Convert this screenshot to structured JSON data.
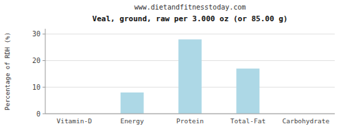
{
  "chart_data": {
    "type": "bar",
    "title": "Veal, ground, raw per 3.000 oz (or 85.00 g)",
    "subtitle": "www.dietandfitnesstoday.com",
    "categories": [
      "Vitamin-D",
      "Energy",
      "Protein",
      "Total-Fat",
      "Carbohydrate"
    ],
    "values": [
      0,
      8,
      28,
      17,
      0
    ],
    "color": "#add8e6",
    "ylabel": "Percentage of RDH (%)",
    "ylim": [
      0,
      32
    ],
    "yticks": [
      0,
      10,
      20,
      30
    ],
    "grid": true
  }
}
